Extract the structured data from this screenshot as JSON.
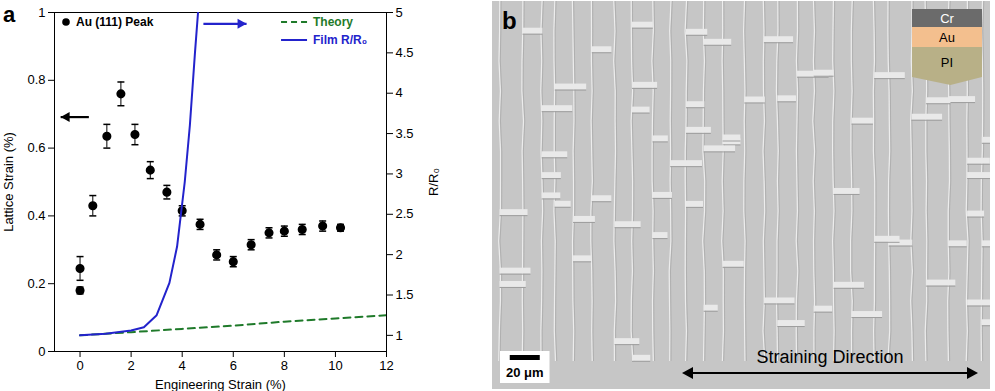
{
  "chart_data": {
    "type": "scatter",
    "panel_label": "a",
    "x_label": "Engineering Strain (%)",
    "y_label": "Lattice Strain (%)",
    "y2_label": "R/R₀",
    "xlim": [
      -1,
      12
    ],
    "xticks": [
      0,
      2,
      4,
      6,
      8,
      10,
      12
    ],
    "ylim": [
      0,
      1
    ],
    "yticks": [
      0,
      0.2,
      0.4,
      0.6,
      0.8,
      1
    ],
    "y2lim": [
      0.8,
      5
    ],
    "y2ticks": [
      1,
      1.5,
      2,
      2.5,
      3,
      3.5,
      4,
      4.5,
      5
    ],
    "legend": "top",
    "series": [
      {
        "name": "Au (111) Peak",
        "type": "scatter",
        "color": "#000000",
        "marker": "circle",
        "x": [
          0,
          0,
          0.5,
          1.05,
          1.6,
          2.15,
          2.75,
          3.4,
          4.0,
          4.7,
          5.35,
          6.0,
          6.7,
          7.4,
          8.0,
          8.7,
          9.5,
          10.2
        ],
        "values": [
          0.18,
          0.245,
          0.43,
          0.635,
          0.76,
          0.64,
          0.535,
          0.47,
          0.415,
          0.375,
          0.285,
          0.265,
          0.315,
          0.35,
          0.355,
          0.36,
          0.37,
          0.365
        ],
        "errors": [
          0.01,
          0.035,
          0.03,
          0.035,
          0.035,
          0.03,
          0.025,
          0.02,
          0.015,
          0.015,
          0.015,
          0.015,
          0.015,
          0.015,
          0.015,
          0.015,
          0.015,
          0.01
        ]
      },
      {
        "name": "Theory",
        "type": "line",
        "color": "#1f7a2a",
        "line_style": "dashed",
        "axis": "y2",
        "x": [
          0,
          2,
          4,
          6,
          8,
          10,
          12
        ],
        "values": [
          1.0,
          1.04,
          1.08,
          1.12,
          1.17,
          1.21,
          1.25
        ]
      },
      {
        "name": "Film R/R₀",
        "type": "line",
        "color": "#2323cc",
        "line_style": "solid",
        "axis": "y2",
        "x": [
          0,
          1,
          2,
          2.5,
          3,
          3.5,
          3.8,
          4.1,
          4.3,
          4.5,
          4.62
        ],
        "values": [
          1.0,
          1.02,
          1.06,
          1.1,
          1.25,
          1.65,
          2.1,
          2.9,
          3.6,
          4.5,
          5.0
        ]
      }
    ]
  },
  "image_panel": {
    "panel_label": "b",
    "layers": [
      "Cr",
      "Au",
      "PI"
    ],
    "scale_bar": "20 μm",
    "direction_label": "Straining Direction"
  }
}
